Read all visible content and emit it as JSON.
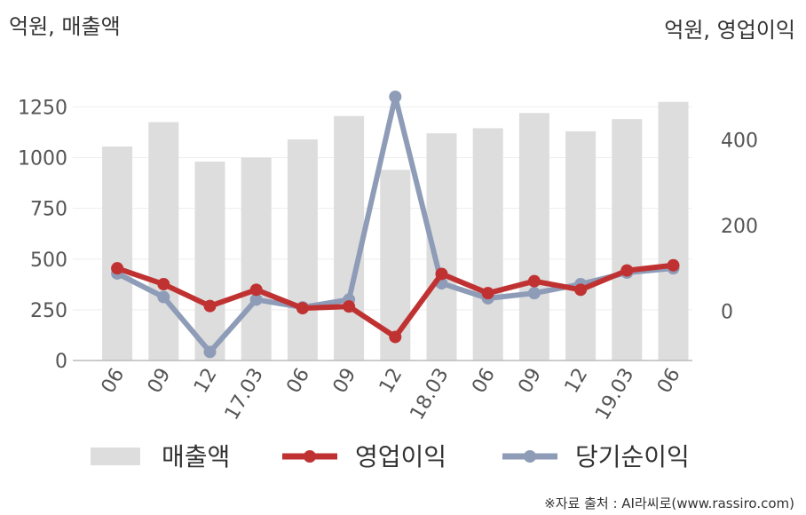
{
  "chart_data": {
    "type": "bar",
    "units": {
      "left": "억원, 매출액",
      "right": "억원, 영업이익"
    },
    "categories": [
      "06",
      "09",
      "12",
      "17.03",
      "06",
      "09",
      "12",
      "18.03",
      "06",
      "09",
      "12",
      "19.03",
      "06"
    ],
    "y_left": {
      "min": 0,
      "max": 1300,
      "ticks": [
        0,
        250,
        500,
        750,
        1000,
        1250
      ]
    },
    "y_right": {
      "min": -115,
      "max": 500,
      "ticks": [
        0,
        200,
        400
      ]
    },
    "grid": true,
    "legend_position": "bottom",
    "series": [
      {
        "name": "매출액",
        "kind": "bar",
        "axis": "left",
        "color": "#dddddd",
        "values": [
          1055,
          1175,
          980,
          1000,
          1090,
          1205,
          940,
          1120,
          1145,
          1220,
          1130,
          1190,
          1275
        ]
      },
      {
        "name": "영업이익",
        "kind": "line",
        "axis": "right",
        "color": "#c03232",
        "values": [
          100,
          63,
          12,
          50,
          7,
          11,
          -60,
          87,
          42,
          70,
          50,
          95,
          107
        ]
      },
      {
        "name": "당기순이익",
        "kind": "line",
        "axis": "right",
        "color": "#8e9cb8",
        "values": [
          88,
          33,
          -95,
          27,
          9,
          27,
          500,
          65,
          30,
          42,
          63,
          90,
          100
        ]
      }
    ]
  },
  "source": "※자료 출처 : AI라씨로(www.rassiro.com)"
}
